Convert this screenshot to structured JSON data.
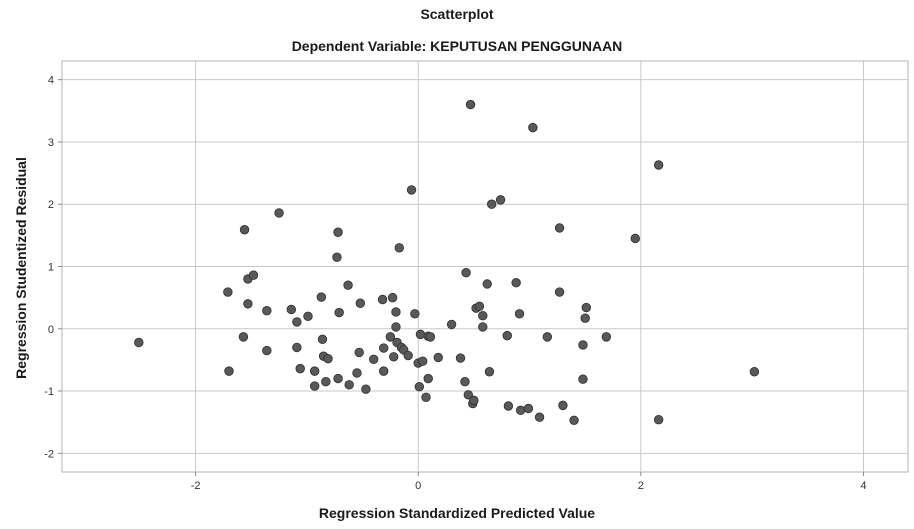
{
  "chart_data": {
    "type": "scatter",
    "title": "Scatterplot",
    "subtitle": "Dependent Variable: KEPUTUSAN PENGGUNAAN",
    "xlabel": "Regression Standardized Predicted Value",
    "ylabel": "Regression Studentized Residual",
    "xlim": [
      -3.2,
      4.4
    ],
    "ylim": [
      -2.3,
      4.3
    ],
    "xticks": [
      -2,
      0,
      2,
      4
    ],
    "yticks": [
      -2,
      -1,
      0,
      1,
      2,
      3,
      4
    ],
    "grid": true,
    "marker_color": "#595959",
    "points": [
      {
        "x": -2.51,
        "y": -0.22
      },
      {
        "x": -1.7,
        "y": -0.68
      },
      {
        "x": -1.71,
        "y": 0.59
      },
      {
        "x": -1.53,
        "y": 0.8
      },
      {
        "x": -1.48,
        "y": 0.86
      },
      {
        "x": -1.53,
        "y": 0.4
      },
      {
        "x": -1.57,
        "y": -0.13
      },
      {
        "x": -1.56,
        "y": 1.59
      },
      {
        "x": -1.25,
        "y": 1.86
      },
      {
        "x": -1.36,
        "y": 0.29
      },
      {
        "x": -1.36,
        "y": -0.35
      },
      {
        "x": -1.14,
        "y": 0.31
      },
      {
        "x": -1.09,
        "y": 0.11
      },
      {
        "x": -1.09,
        "y": -0.3
      },
      {
        "x": -1.06,
        "y": -0.64
      },
      {
        "x": -0.99,
        "y": 0.2
      },
      {
        "x": -0.93,
        "y": -0.68
      },
      {
        "x": -0.93,
        "y": -0.92
      },
      {
        "x": -0.87,
        "y": 0.51
      },
      {
        "x": -0.86,
        "y": -0.17
      },
      {
        "x": -0.85,
        "y": -0.44
      },
      {
        "x": -0.81,
        "y": -0.48
      },
      {
        "x": -0.83,
        "y": -0.85
      },
      {
        "x": -0.72,
        "y": 1.55
      },
      {
        "x": -0.73,
        "y": 1.15
      },
      {
        "x": -0.71,
        "y": 0.26
      },
      {
        "x": -0.72,
        "y": -0.8
      },
      {
        "x": -0.63,
        "y": 0.7
      },
      {
        "x": -0.62,
        "y": -0.9
      },
      {
        "x": -0.55,
        "y": -0.71
      },
      {
        "x": -0.53,
        "y": -0.38
      },
      {
        "x": -0.52,
        "y": 0.41
      },
      {
        "x": -0.47,
        "y": -0.97
      },
      {
        "x": -0.4,
        "y": -0.49
      },
      {
        "x": -0.32,
        "y": 0.47
      },
      {
        "x": -0.31,
        "y": -0.31
      },
      {
        "x": -0.31,
        "y": -0.68
      },
      {
        "x": -0.25,
        "y": -0.13
      },
      {
        "x": -0.23,
        "y": 0.5
      },
      {
        "x": -0.22,
        "y": -0.45
      },
      {
        "x": -0.2,
        "y": 0.27
      },
      {
        "x": -0.2,
        "y": 0.03
      },
      {
        "x": -0.19,
        "y": -0.22
      },
      {
        "x": -0.17,
        "y": 1.3
      },
      {
        "x": -0.15,
        "y": -0.3
      },
      {
        "x": -0.13,
        "y": -0.34
      },
      {
        "x": -0.09,
        "y": -0.43
      },
      {
        "x": -0.06,
        "y": 2.23
      },
      {
        "x": -0.03,
        "y": 0.24
      },
      {
        "x": 0.0,
        "y": -0.55
      },
      {
        "x": 0.01,
        "y": -0.93
      },
      {
        "x": 0.02,
        "y": -0.09
      },
      {
        "x": 0.04,
        "y": -0.52
      },
      {
        "x": 0.07,
        "y": -1.1
      },
      {
        "x": 0.09,
        "y": -0.8
      },
      {
        "x": 0.09,
        "y": -0.12
      },
      {
        "x": 0.11,
        "y": -0.13
      },
      {
        "x": 0.18,
        "y": -0.46
      },
      {
        "x": 0.3,
        "y": 0.07
      },
      {
        "x": 0.38,
        "y": -0.47
      },
      {
        "x": 0.42,
        "y": -0.85
      },
      {
        "x": 0.43,
        "y": 0.9
      },
      {
        "x": 0.45,
        "y": -1.06
      },
      {
        "x": 0.47,
        "y": 3.6
      },
      {
        "x": 0.49,
        "y": -1.2
      },
      {
        "x": 0.5,
        "y": -1.15
      },
      {
        "x": 0.52,
        "y": 0.33
      },
      {
        "x": 0.55,
        "y": 0.36
      },
      {
        "x": 0.58,
        "y": 0.03
      },
      {
        "x": 0.58,
        "y": 0.21
      },
      {
        "x": 0.62,
        "y": 0.72
      },
      {
        "x": 0.64,
        "y": -0.69
      },
      {
        "x": 0.66,
        "y": 2.0
      },
      {
        "x": 0.74,
        "y": 2.07
      },
      {
        "x": 0.8,
        "y": -0.11
      },
      {
        "x": 0.81,
        "y": -1.24
      },
      {
        "x": 0.88,
        "y": 0.74
      },
      {
        "x": 0.91,
        "y": 0.24
      },
      {
        "x": 0.92,
        "y": -1.31
      },
      {
        "x": 0.99,
        "y": -1.28
      },
      {
        "x": 1.03,
        "y": 3.23
      },
      {
        "x": 1.09,
        "y": -1.42
      },
      {
        "x": 1.16,
        "y": -0.13
      },
      {
        "x": 1.27,
        "y": 1.62
      },
      {
        "x": 1.27,
        "y": 0.59
      },
      {
        "x": 1.3,
        "y": -1.23
      },
      {
        "x": 1.4,
        "y": -1.47
      },
      {
        "x": 1.48,
        "y": -0.26
      },
      {
        "x": 1.48,
        "y": -0.81
      },
      {
        "x": 1.5,
        "y": 0.17
      },
      {
        "x": 1.51,
        "y": 0.34
      },
      {
        "x": 1.69,
        "y": -0.13
      },
      {
        "x": 1.95,
        "y": 1.45
      },
      {
        "x": 2.16,
        "y": 2.63
      },
      {
        "x": 2.16,
        "y": -1.46
      },
      {
        "x": 3.02,
        "y": -0.69
      }
    ]
  }
}
